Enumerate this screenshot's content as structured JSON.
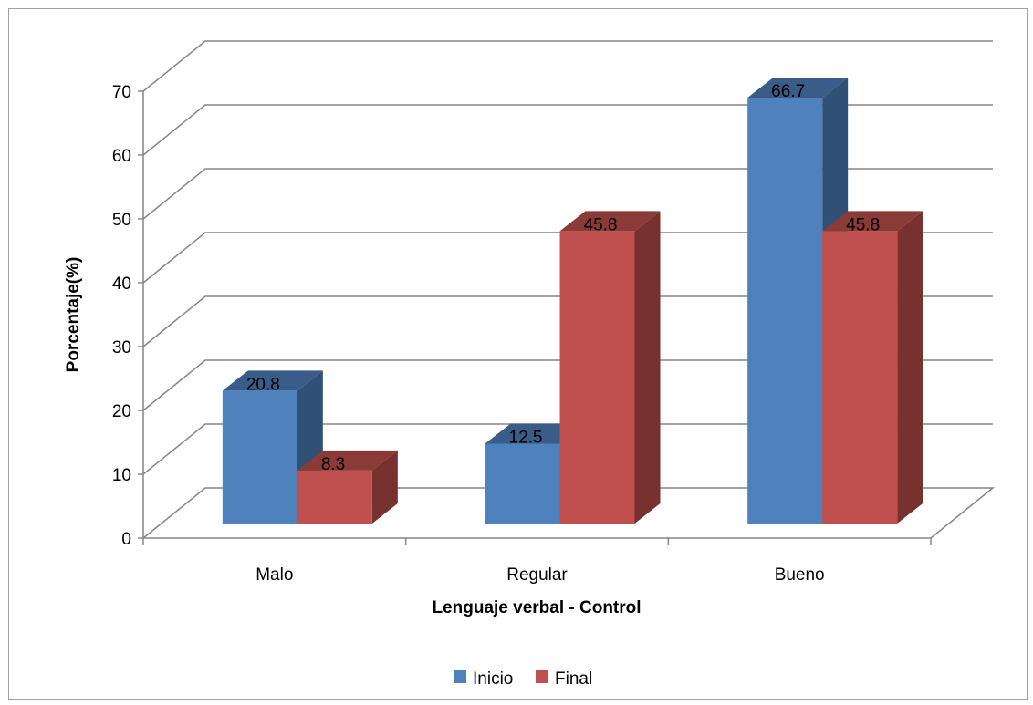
{
  "chart_data": {
    "type": "bar",
    "title": "",
    "xlabel": "Lenguaje verbal - Control",
    "ylabel": "Porcentaje(%)",
    "ylim": [
      0,
      70
    ],
    "yticks": [
      0,
      10,
      20,
      30,
      40,
      50,
      60,
      70
    ],
    "categories": [
      "Malo",
      "Regular",
      "Bueno"
    ],
    "series": [
      {
        "name": "Inicio",
        "values": [
          20.8,
          12.5,
          66.7
        ],
        "color": "#4f81bd"
      },
      {
        "name": "Final",
        "values": [
          8.3,
          45.8,
          45.8
        ],
        "color": "#c0504d"
      }
    ],
    "data_labels": true,
    "grid": true,
    "legend": "bottom",
    "style": "3d-clustered-column"
  }
}
